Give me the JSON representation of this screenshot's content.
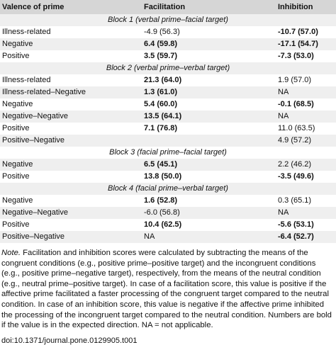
{
  "table": {
    "header": [
      "Valence of prime",
      "Facilitation",
      "Inhibition"
    ],
    "rows": [
      {
        "block": "Block 1 (verbal prime–facial target)"
      },
      {
        "cells": [
          "Illness-related",
          "-4.9 (56.3)",
          "-10.7 (57.0)"
        ],
        "bold": [
          2
        ]
      },
      {
        "cells": [
          "Negative",
          "6.4 (59.8)",
          "-17.1 (54.7)"
        ],
        "bold": [
          1,
          2
        ]
      },
      {
        "cells": [
          "Positive",
          "3.5 (59.7)",
          "-7.3 (53.0)"
        ],
        "bold": [
          1,
          2
        ]
      },
      {
        "block": "Block 2 (verbal prime–verbal target)"
      },
      {
        "cells": [
          "Illness-related",
          "21.3 (64.0)",
          "1.9 (57.0)"
        ],
        "bold": [
          1
        ]
      },
      {
        "cells": [
          "Illness-related–Negative",
          "1.3 (61.0)",
          "NA"
        ],
        "bold": [
          1
        ]
      },
      {
        "cells": [
          "Negative",
          "5.4 (60.0)",
          "-0.1 (68.5)"
        ],
        "bold": [
          1,
          2
        ]
      },
      {
        "cells": [
          "Negative–Negative",
          "13.5 (64.1)",
          "NA"
        ],
        "bold": [
          1
        ]
      },
      {
        "cells": [
          "Positive",
          "7.1 (76.8)",
          "11.0 (63.5)"
        ],
        "bold": [
          1
        ]
      },
      {
        "cells": [
          "Positive–Negative",
          null,
          "4.9 (57.2)"
        ],
        "bold": []
      },
      {
        "block": "Block 3 (facial prime–facial target)"
      },
      {
        "cells": [
          "Negative",
          "6.5 (45.1)",
          "2.2 (46.2)"
        ],
        "bold": [
          1
        ]
      },
      {
        "cells": [
          "Positive",
          "13.8 (50.0)",
          "-3.5 (49.6)"
        ],
        "bold": [
          1,
          2
        ]
      },
      {
        "block": "Block 4 (facial prime–verbal target)"
      },
      {
        "cells": [
          "Negative",
          "1.6 (52.8)",
          "0.3 (65.1)"
        ],
        "bold": [
          1
        ]
      },
      {
        "cells": [
          "Negative–Negative",
          "-6.0 (56.8)",
          "NA"
        ],
        "bold": []
      },
      {
        "cells": [
          "Positive",
          "10.4 (62.5)",
          "-5.6 (53.1)"
        ],
        "bold": [
          1,
          2
        ]
      },
      {
        "cells": [
          "Positive–Negative",
          "NA",
          "-6.4 (52.7)"
        ],
        "bold": [
          2
        ]
      }
    ]
  },
  "note": {
    "label": "Note.",
    "text": "Facilitation and inhibition scores were calculated by subtracting the means of the congruent conditions (e.g., positive prime–positive target) and the incongruent conditions (e.g., positive prime–negative target), respectively, from the means of the neutral condition (e.g., neutral prime–positive target). In case of a facilitation score, this value is positive if the affective prime facilitated a faster processing of the congruent target compared to the neutral condition. In case of an inhibition score, this value is negative if the affective prime inhibited the processing of the incongruent target compared to the neutral condition. Numbers are bold if the value is in the expected direction. NA = not applicable."
  },
  "doi": "doi:10.1371/journal.pone.0129905.t001"
}
